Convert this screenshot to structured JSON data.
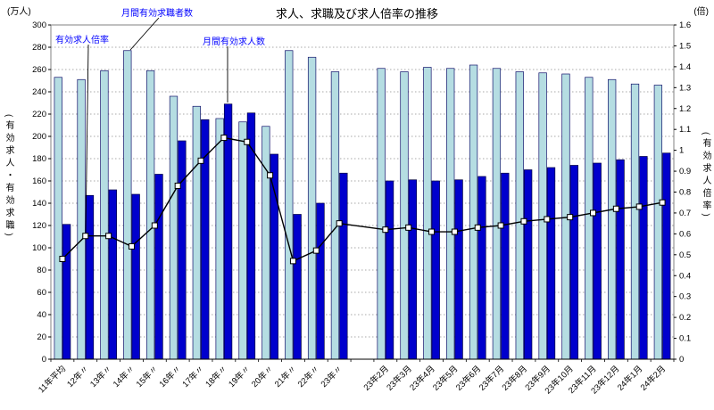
{
  "annotations": {
    "ratio": "有効求人倍率",
    "seekers": "月間有効求職者数",
    "openings": "月間有効求人数"
  },
  "colors": {
    "annotation_text": "#0000ff",
    "seekers_bar": "#b5dde2",
    "openings_bar": "#0000cd",
    "ratio_line": "#000000",
    "marker_fill": "#ffffff",
    "grid": "#a8a8a8",
    "plot_border": "#808080"
  },
  "chart_data": {
    "type": "bar+line",
    "title": "求人、求職及び求人倍率の推移",
    "categories": [
      "11年平均",
      "12年〃",
      "13年〃",
      "14年〃",
      "15年〃",
      "16年〃",
      "17年〃",
      "18年〃",
      "19年〃",
      "20年〃",
      "21年〃",
      "22年〃",
      "23年〃",
      "23年2月",
      "23年3月",
      "23年4月",
      "23年5月",
      "23年6月",
      "23年7月",
      "23年8月",
      "23年9月",
      "23年10月",
      "23年11月",
      "23年12月",
      "24年1月",
      "24年2月"
    ],
    "gap_after_index": 12,
    "series": [
      {
        "name": "月間有効求職者数",
        "type": "bar",
        "axis": "left",
        "color": "#b5dde2",
        "values": [
          253,
          251,
          259,
          277,
          259,
          236,
          227,
          216,
          213,
          209,
          277,
          271,
          258,
          261,
          258,
          262,
          261,
          264,
          261,
          258,
          257,
          256,
          253,
          251,
          247,
          246
        ]
      },
      {
        "name": "月間有効求人数",
        "type": "bar",
        "axis": "left",
        "color": "#0000cd",
        "values": [
          121,
          147,
          152,
          148,
          166,
          196,
          215,
          229,
          221,
          184,
          130,
          140,
          167,
          160,
          161,
          160,
          161,
          164,
          167,
          170,
          172,
          174,
          176,
          179,
          182,
          185
        ]
      },
      {
        "name": "有効求人倍率",
        "type": "line",
        "axis": "right",
        "color": "#000000",
        "values": [
          0.48,
          0.59,
          0.59,
          0.54,
          0.64,
          0.83,
          0.95,
          1.06,
          1.04,
          0.88,
          0.47,
          0.52,
          0.65,
          0.62,
          0.63,
          0.61,
          0.61,
          0.63,
          0.64,
          0.66,
          0.67,
          0.68,
          0.7,
          0.72,
          0.73,
          0.75
        ]
      }
    ],
    "left_axis": {
      "min": 0,
      "max": 300,
      "step": 20,
      "unit": "(万人)",
      "title": "(有効求人・有効求職)"
    },
    "right_axis": {
      "min": 0,
      "max": 1.6,
      "step": 0.1,
      "unit": "(倍)",
      "title": "(有効求人倍率)"
    },
    "grid": true,
    "legend": "annotations"
  }
}
